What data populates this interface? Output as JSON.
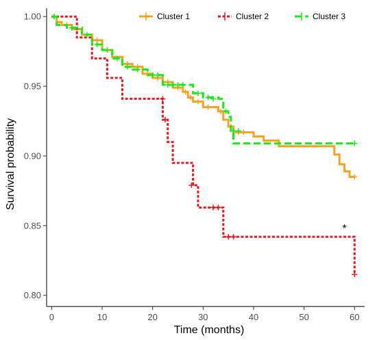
{
  "chart_data": {
    "type": "line",
    "title": "",
    "xlabel": "Time (months)",
    "ylabel": "Survival probability",
    "xlim": [
      -1,
      62
    ],
    "ylim": [
      0.792,
      1.006
    ],
    "x_ticks": [
      0,
      10,
      20,
      30,
      40,
      50,
      60
    ],
    "y_ticks": [
      0.8,
      0.85,
      0.9,
      0.95,
      1.0
    ],
    "y_tick_labels": [
      "0.80",
      "0.85",
      "0.90",
      "0.95",
      "1.00"
    ],
    "grid": false,
    "legend_position": "top",
    "annotation": {
      "text": "*",
      "x": 58,
      "y": 0.848
    },
    "series": [
      {
        "name": "Cluster 1",
        "color": "#F5A21F",
        "dash": "solid",
        "points": [
          [
            0,
            1.0
          ],
          [
            1,
            0.996
          ],
          [
            2,
            0.994
          ],
          [
            4,
            0.991
          ],
          [
            6,
            0.987
          ],
          [
            8,
            0.983
          ],
          [
            10,
            0.976
          ],
          [
            12,
            0.971
          ],
          [
            14,
            0.966
          ],
          [
            16,
            0.964
          ],
          [
            18,
            0.959
          ],
          [
            20,
            0.956
          ],
          [
            22,
            0.953
          ],
          [
            24,
            0.949
          ],
          [
            26,
            0.946
          ],
          [
            27,
            0.942
          ],
          [
            28,
            0.939
          ],
          [
            30,
            0.935
          ],
          [
            33,
            0.932
          ],
          [
            34,
            0.926
          ],
          [
            35,
            0.921
          ],
          [
            36,
            0.917
          ],
          [
            40,
            0.914
          ],
          [
            42,
            0.911
          ],
          [
            45,
            0.907
          ],
          [
            53,
            0.907
          ],
          [
            56,
            0.901
          ],
          [
            57,
            0.894
          ],
          [
            58,
            0.889
          ],
          [
            59,
            0.885
          ],
          [
            60,
            0.885
          ]
        ],
        "censored": [
          [
            0.5,
            1.0
          ],
          [
            3,
            0.994
          ],
          [
            5,
            0.991
          ],
          [
            9,
            0.983
          ],
          [
            11,
            0.976
          ],
          [
            15,
            0.966
          ],
          [
            17,
            0.964
          ],
          [
            19,
            0.959
          ],
          [
            21,
            0.956
          ],
          [
            23,
            0.953
          ],
          [
            25,
            0.949
          ],
          [
            26.5,
            0.946
          ],
          [
            27.5,
            0.942
          ],
          [
            29,
            0.939
          ],
          [
            31,
            0.935
          ],
          [
            33.5,
            0.932
          ],
          [
            35.5,
            0.921
          ],
          [
            37,
            0.917
          ],
          [
            38,
            0.917
          ],
          [
            60,
            0.885
          ]
        ]
      },
      {
        "name": "Cluster 2",
        "color": "#E8191F",
        "dash": "dotted",
        "points": [
          [
            0,
            1.0
          ],
          [
            5,
            0.985
          ],
          [
            8,
            0.97
          ],
          [
            11,
            0.956
          ],
          [
            14,
            0.941
          ],
          [
            21,
            0.941
          ],
          [
            22,
            0.926
          ],
          [
            23,
            0.91
          ],
          [
            24,
            0.895
          ],
          [
            27,
            0.895
          ],
          [
            28,
            0.879
          ],
          [
            29,
            0.863
          ],
          [
            33,
            0.863
          ],
          [
            34,
            0.842
          ],
          [
            57,
            0.842
          ],
          [
            60,
            0.842
          ],
          [
            60,
            0.815
          ]
        ],
        "censored": [
          [
            22,
            0.941
          ],
          [
            22.5,
            0.926
          ],
          [
            27.7,
            0.879
          ],
          [
            32,
            0.863
          ],
          [
            33,
            0.863
          ],
          [
            35,
            0.842
          ],
          [
            36,
            0.842
          ],
          [
            60,
            0.815
          ]
        ]
      },
      {
        "name": "Cluster 3",
        "color": "#1AE91A",
        "dash": "dashed",
        "points": [
          [
            0,
            1.0
          ],
          [
            1,
            0.994
          ],
          [
            3,
            0.992
          ],
          [
            6,
            0.987
          ],
          [
            8,
            0.98
          ],
          [
            10,
            0.976
          ],
          [
            12,
            0.97
          ],
          [
            14,
            0.964
          ],
          [
            16,
            0.962
          ],
          [
            19,
            0.958
          ],
          [
            22,
            0.951
          ],
          [
            27,
            0.951
          ],
          [
            28,
            0.945
          ],
          [
            30,
            0.942
          ],
          [
            33,
            0.941
          ],
          [
            34,
            0.932
          ],
          [
            35,
            0.928
          ],
          [
            35.5,
            0.918
          ],
          [
            36,
            0.909
          ],
          [
            60,
            0.909
          ]
        ],
        "censored": [
          [
            0.5,
            1.0
          ],
          [
            4,
            0.992
          ],
          [
            7,
            0.987
          ],
          [
            9,
            0.98
          ],
          [
            11,
            0.976
          ],
          [
            13,
            0.97
          ],
          [
            15,
            0.964
          ],
          [
            17,
            0.962
          ],
          [
            20,
            0.958
          ],
          [
            21,
            0.958
          ],
          [
            23,
            0.951
          ],
          [
            24,
            0.951
          ],
          [
            25,
            0.951
          ],
          [
            26,
            0.951
          ],
          [
            29,
            0.945
          ],
          [
            31,
            0.942
          ],
          [
            32,
            0.941
          ],
          [
            34.5,
            0.932
          ],
          [
            36,
            0.918
          ],
          [
            37,
            0.918
          ],
          [
            60,
            0.909
          ]
        ]
      }
    ]
  }
}
